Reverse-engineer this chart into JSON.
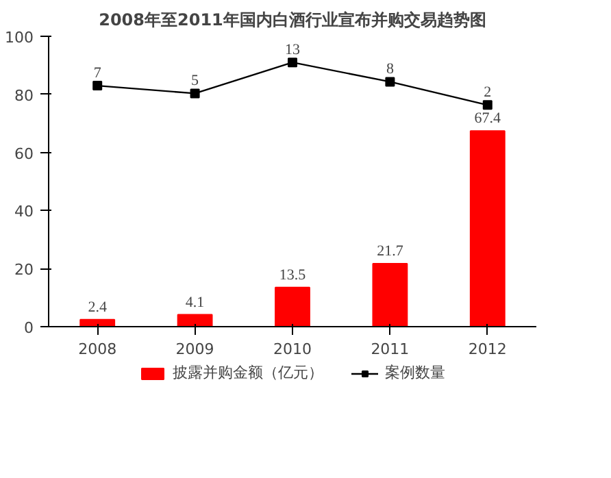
{
  "chart_data": {
    "type": "bar",
    "title": "2008年至2011年国内白酒行业宣布并购交易趋势图",
    "categories": [
      "2008",
      "2009",
      "2010",
      "2011",
      "2012"
    ],
    "series": [
      {
        "name": "披露并购金额（亿元）",
        "color": "#ff0000",
        "values": [
          2.4,
          4.1,
          13.5,
          21.7,
          67.4
        ]
      },
      {
        "name": "案例数量",
        "type": "line",
        "axis": "y2",
        "color": "#000000",
        "marker": "square",
        "values": [
          7,
          5,
          13,
          8,
          2
        ]
      }
    ],
    "ylim": [
      0,
      100
    ],
    "yticks": [
      0,
      20,
      40,
      60,
      80,
      100
    ],
    "y2lim": [
      -55.25,
      19.75
    ],
    "data_labels": true,
    "legend": "bottom",
    "grid": false
  }
}
